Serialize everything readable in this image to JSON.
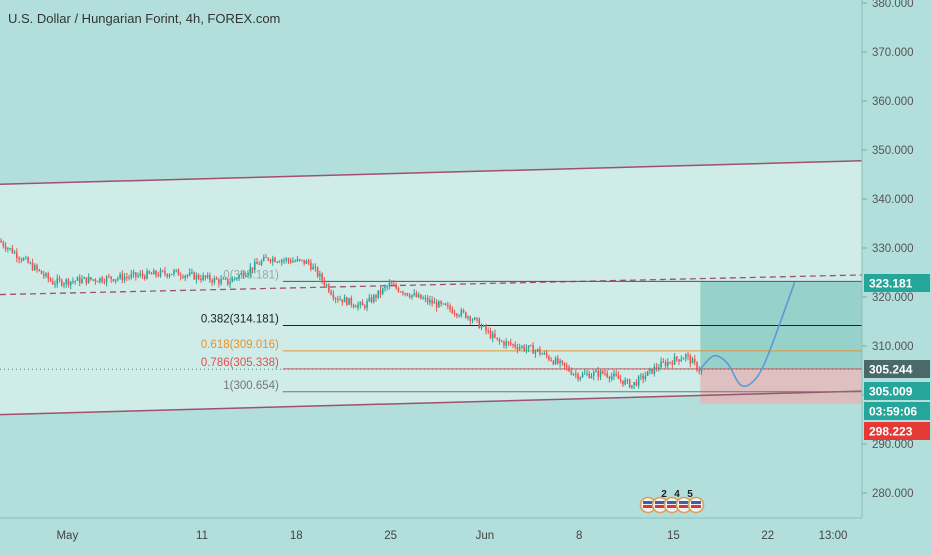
{
  "header": {
    "title": "U.S. Dollar / Hungarian Forint, 4h, FOREX.com"
  },
  "colors": {
    "background": "#b2dfdb",
    "channel_fill": "#d4efea",
    "channel_line": "#a05070",
    "up_candle": "#26a69a",
    "down_candle": "#ef5350",
    "target_zone": "#8fcfc5",
    "stop_zone": "#e0b8b8",
    "forecast_path": "#5b9bd5",
    "fib_0382": "#222222",
    "fib_0618": "#e8922e",
    "fib_0786": "#e05050",
    "fib_1": "#777777",
    "price_tag_last": "#4a6a6a",
    "price_tag_stop": "#e53935",
    "price_tag_target": "#26a69a"
  },
  "chart_data": {
    "type": "candlestick",
    "y_axis": {
      "ticks": [
        "380.000",
        "370.000",
        "360.000",
        "350.000",
        "340.000",
        "330.000",
        "320.000",
        "310.000",
        "300.000",
        "290.000",
        "280.000"
      ],
      "range": [
        275,
        383
      ]
    },
    "x_axis": {
      "labels": [
        "May",
        "11",
        "18",
        "25",
        "Jun",
        "8",
        "15",
        "22",
        "13:00"
      ],
      "range_days": [
        "2020-04-26",
        "2020-06-29"
      ]
    },
    "price_path_keypoints": [
      [
        "2020-04-26",
        331.5
      ],
      [
        "2020-04-30",
        323.0
      ],
      [
        "2020-05-05",
        324.0
      ],
      [
        "2020-05-09",
        325.0
      ],
      [
        "2020-05-13",
        323.0
      ],
      [
        "2020-05-16",
        328.0
      ],
      [
        "2020-05-19",
        327.0
      ],
      [
        "2020-05-21",
        320.0
      ],
      [
        "2020-05-23",
        318.0
      ],
      [
        "2020-05-25",
        322.5
      ],
      [
        "2020-05-27",
        320.0
      ],
      [
        "2020-05-31",
        316.0
      ],
      [
        "2020-06-02",
        311.0
      ],
      [
        "2020-06-05",
        309.0
      ],
      [
        "2020-06-08",
        304.0
      ],
      [
        "2020-06-10",
        304.5
      ],
      [
        "2020-06-12",
        302.0
      ],
      [
        "2020-06-14",
        306.0
      ],
      [
        "2020-06-16",
        308.0
      ],
      [
        "2020-06-17",
        305.2
      ]
    ],
    "channel": {
      "upper": [
        [
          "2020-04-26",
          343.0
        ],
        [
          "2020-06-29",
          347.8
        ]
      ],
      "lower": [
        [
          "2020-04-26",
          296.0
        ],
        [
          "2020-06-29",
          300.8
        ]
      ]
    },
    "dashed_trendline": [
      [
        "2020-04-26",
        320.5
      ],
      [
        "2020-06-29",
        324.5
      ]
    ],
    "fibonacci": {
      "start": "2020-05-17",
      "end": "2020-06-29",
      "levels": [
        {
          "label": "0(323.181)",
          "ratio": 0,
          "value": 323.181
        },
        {
          "label": "0.382(314.181)",
          "ratio": 0.382,
          "value": 314.181
        },
        {
          "label": "0.618(309.016)",
          "ratio": 0.618,
          "value": 309.016
        },
        {
          "label": "0.786(305.338)",
          "ratio": 0.786,
          "value": 305.338
        },
        {
          "label": "1(300.654)",
          "ratio": 1,
          "value": 300.654
        }
      ]
    },
    "position": {
      "start": "2020-06-17",
      "end": "2020-06-29",
      "entry": 305.244,
      "target": 323.181,
      "stop": 298.223
    },
    "forecast_path": [
      [
        "2020-06-17",
        305.3
      ],
      [
        "2020-06-18",
        308.0
      ],
      [
        "2020-06-19",
        306.5
      ],
      [
        "2020-06-20",
        302.0
      ],
      [
        "2020-06-21",
        303.0
      ],
      [
        "2020-06-22",
        308.0
      ],
      [
        "2020-06-24",
        323.0
      ]
    ],
    "price_labels": [
      {
        "text": "323.181",
        "value": 323.181,
        "color": "#26a69a"
      },
      {
        "text": "305.244",
        "value": 305.244,
        "color": "#4a6a6a"
      },
      {
        "text": "305.009",
        "value": 305.009,
        "color": "#26a69a"
      },
      {
        "text": "03:59:06",
        "value": 303.0,
        "color": "#26a69a"
      },
      {
        "text": "298.223",
        "value": 298.223,
        "color": "#e53935"
      }
    ],
    "events": [
      "2",
      "4",
      "5"
    ]
  }
}
